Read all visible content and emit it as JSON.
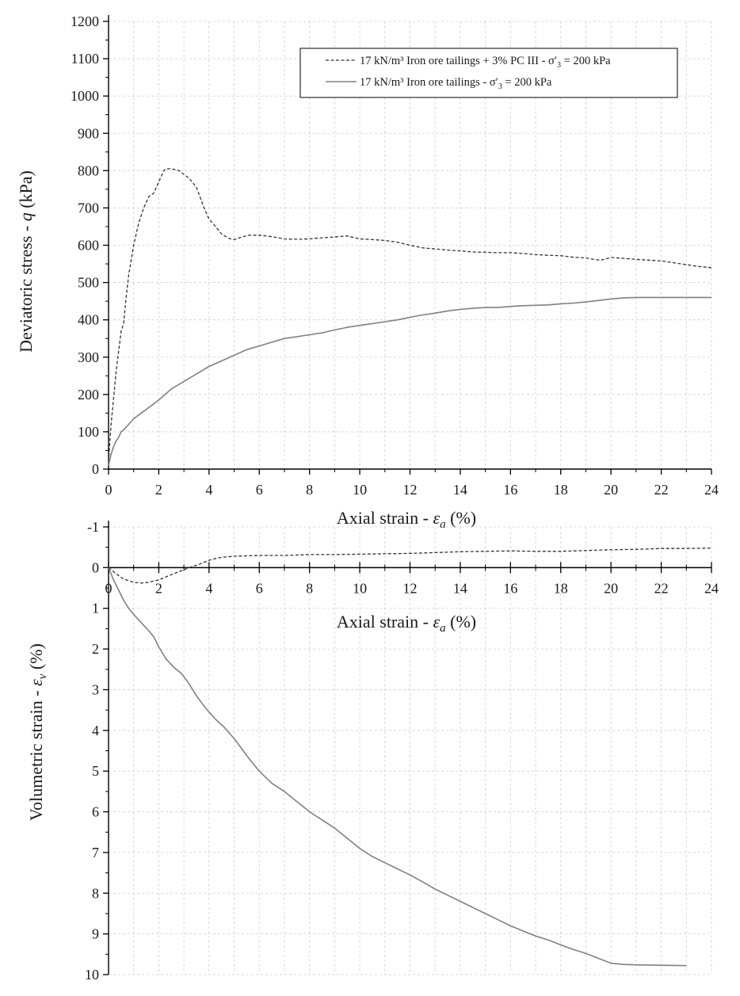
{
  "chart_data": [
    {
      "type": "line",
      "id": "stress",
      "xlabel_text": "Axial strain - ",
      "xlabel_symbol": "ε",
      "xlabel_sub": "a",
      "xlabel_unit": " (%)",
      "ylabel_text": "Deviatoric stress - ",
      "ylabel_symbol": "q",
      "ylabel_unit": " (kPa)",
      "xlim": [
        0,
        24
      ],
      "ylim": [
        0,
        1200
      ],
      "xticks": [
        0,
        2,
        4,
        6,
        8,
        10,
        12,
        14,
        16,
        18,
        20,
        22,
        24
      ],
      "yticks": [
        0,
        100,
        200,
        300,
        400,
        500,
        600,
        700,
        800,
        900,
        1000,
        1100,
        1200
      ],
      "grid": true,
      "legend_position": "top-right",
      "series": [
        {
          "name": "17 kN/m³ Iron ore tailings + 3% PC III - σ′₃ = 200 kPa",
          "legend_label": "17 kN/m³ Iron ore tailings + 3% PC III - σ′",
          "legend_sub": "3",
          "legend_tail": " = 200 kPa",
          "style": "dashed",
          "color": "#333333",
          "x": [
            0,
            0.1,
            0.3,
            0.5,
            0.6,
            0.7,
            0.8,
            1.0,
            1.2,
            1.4,
            1.6,
            1.8,
            2.0,
            2.1,
            2.2,
            2.3,
            2.5,
            2.8,
            3.0,
            3.2,
            3.5,
            3.8,
            4.0,
            4.2,
            4.5,
            4.8,
            5.0,
            5.3,
            5.6,
            6.0,
            6.5,
            7.0,
            7.5,
            8.0,
            8.5,
            9.0,
            9.5,
            10.0,
            10.5,
            11.0,
            11.5,
            12.0,
            12.5,
            13.0,
            13.5,
            14.0,
            14.5,
            15.0,
            15.5,
            16.0,
            16.5,
            17.0,
            17.5,
            18.0,
            18.5,
            19.0,
            19.3,
            19.6,
            20.0,
            20.5,
            21.0,
            21.5,
            22.0,
            22.5,
            23.0,
            23.5,
            24.0
          ],
          "y": [
            20,
            120,
            260,
            370,
            390,
            460,
            520,
            600,
            660,
            700,
            730,
            740,
            770,
            785,
            800,
            805,
            805,
            800,
            790,
            780,
            755,
            700,
            670,
            655,
            630,
            618,
            615,
            622,
            627,
            627,
            623,
            617,
            616,
            617,
            620,
            622,
            625,
            617,
            615,
            613,
            608,
            600,
            593,
            590,
            587,
            585,
            582,
            581,
            580,
            580,
            578,
            575,
            573,
            572,
            568,
            566,
            562,
            560,
            567,
            565,
            562,
            560,
            558,
            553,
            548,
            543,
            540
          ]
        },
        {
          "name": "17 kN/m³  Iron ore tailings - σ′₃ = 200 kPa",
          "legend_label": "17 kN/m³  Iron ore tailings - σ′",
          "legend_sub": "3",
          "legend_tail": " = 200 kPa",
          "style": "solid",
          "color": "#808080",
          "x": [
            0,
            0.1,
            0.2,
            0.3,
            0.4,
            0.5,
            0.6,
            0.8,
            1.0,
            1.2,
            1.5,
            1.8,
            2.0,
            2.5,
            3.0,
            3.5,
            4.0,
            4.5,
            5.0,
            5.5,
            6.0,
            6.5,
            7.0,
            7.5,
            8.0,
            8.5,
            9.0,
            9.5,
            10.0,
            10.5,
            11.0,
            11.5,
            12.0,
            12.5,
            13.0,
            13.5,
            14.0,
            14.5,
            15.0,
            15.5,
            16.0,
            16.5,
            17.0,
            17.5,
            18.0,
            18.5,
            19.0,
            19.5,
            20.0,
            20.5,
            21.0,
            21.5,
            22.0,
            22.5,
            23.0,
            23.5,
            24.0
          ],
          "y": [
            10,
            40,
            60,
            75,
            85,
            100,
            105,
            120,
            135,
            145,
            160,
            175,
            185,
            215,
            235,
            255,
            275,
            290,
            305,
            320,
            330,
            340,
            350,
            355,
            360,
            365,
            373,
            380,
            385,
            390,
            395,
            400,
            407,
            413,
            418,
            424,
            428,
            431,
            433,
            433,
            436,
            438,
            439,
            440,
            443,
            445,
            448,
            452,
            456,
            459,
            460,
            460,
            460,
            460,
            460,
            460,
            460
          ]
        }
      ]
    },
    {
      "type": "line",
      "id": "volumetric",
      "xlabel_text": "Axial strain - ",
      "xlabel_symbol": "ε",
      "xlabel_sub": "a",
      "xlabel_unit": " (%)",
      "ylabel_text": "Volumetric strain - ",
      "ylabel_symbol": "ε",
      "ylabel_sub": "v",
      "ylabel_unit": " (%)",
      "xlim": [
        0,
        24
      ],
      "ylim": [
        -1,
        10
      ],
      "y_inverted": true,
      "xticks": [
        0,
        2,
        4,
        6,
        8,
        10,
        12,
        14,
        16,
        18,
        20,
        22,
        24
      ],
      "yticks": [
        -1,
        0,
        1,
        2,
        3,
        4,
        5,
        6,
        7,
        8,
        9,
        10
      ],
      "grid": true,
      "series": [
        {
          "name": "17 kN/m³ Iron ore tailings + 3% PC III - σ′₃ = 200 kPa",
          "style": "dashed",
          "color": "#333333",
          "x": [
            0,
            0.3,
            0.6,
            1.0,
            1.3,
            1.6,
            2.0,
            2.4,
            2.8,
            3.2,
            3.6,
            4.0,
            4.3,
            4.6,
            5.0,
            6.0,
            7.0,
            8.0,
            9.0,
            10.0,
            11.0,
            12.0,
            13.0,
            14.0,
            15.0,
            16.0,
            17.0,
            18.0,
            19.0,
            20.0,
            21.0,
            22.0,
            23.0,
            24.0
          ],
          "y": [
            0,
            0.15,
            0.28,
            0.36,
            0.38,
            0.36,
            0.3,
            0.2,
            0.1,
            0.0,
            -0.08,
            -0.18,
            -0.23,
            -0.26,
            -0.28,
            -0.3,
            -0.3,
            -0.32,
            -0.32,
            -0.33,
            -0.34,
            -0.35,
            -0.37,
            -0.39,
            -0.4,
            -0.41,
            -0.4,
            -0.4,
            -0.42,
            -0.44,
            -0.45,
            -0.47,
            -0.47,
            -0.48
          ]
        },
        {
          "name": "17 kN/m³  Iron ore tailings - σ′₃ = 200 kPa",
          "style": "solid",
          "color": "#808080",
          "x": [
            0,
            0.2,
            0.4,
            0.6,
            0.8,
            1.0,
            1.3,
            1.6,
            1.8,
            2.0,
            2.3,
            2.6,
            2.9,
            3.2,
            3.5,
            3.8,
            4.0,
            4.3,
            4.6,
            5.0,
            5.3,
            5.6,
            6.0,
            6.5,
            7.0,
            7.5,
            8.0,
            8.5,
            9.0,
            9.5,
            10.0,
            10.5,
            11.0,
            11.5,
            12.0,
            12.5,
            13.0,
            13.5,
            14.0,
            14.5,
            15.0,
            15.5,
            16.0,
            16.5,
            17.0,
            17.5,
            18.0,
            18.5,
            19.0,
            19.5,
            20.0,
            20.5,
            21.0,
            22.0,
            23.0
          ],
          "y": [
            0,
            0.3,
            0.55,
            0.8,
            1.0,
            1.15,
            1.35,
            1.55,
            1.7,
            1.95,
            2.25,
            2.45,
            2.6,
            2.85,
            3.15,
            3.4,
            3.55,
            3.75,
            3.92,
            4.2,
            4.45,
            4.7,
            5.0,
            5.3,
            5.5,
            5.75,
            6.0,
            6.2,
            6.4,
            6.65,
            6.9,
            7.1,
            7.25,
            7.4,
            7.55,
            7.72,
            7.9,
            8.05,
            8.2,
            8.35,
            8.5,
            8.65,
            8.8,
            8.93,
            9.05,
            9.15,
            9.27,
            9.38,
            9.48,
            9.6,
            9.72,
            9.75,
            9.76,
            9.77,
            9.78
          ]
        }
      ]
    }
  ]
}
